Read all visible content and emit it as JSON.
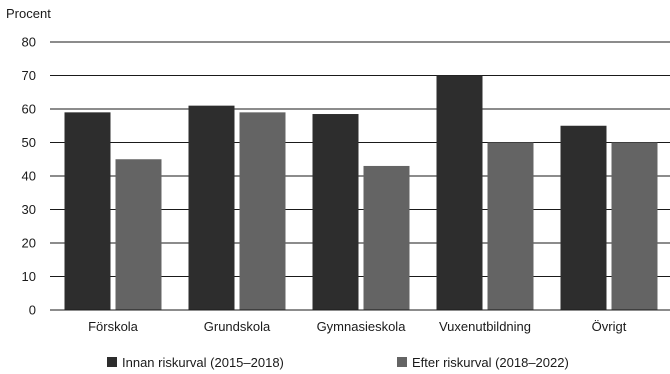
{
  "chart_data": {
    "type": "bar",
    "ylabel": "Procent",
    "ylim": [
      0,
      80
    ],
    "yticks": [
      0,
      10,
      20,
      30,
      40,
      50,
      60,
      70,
      80
    ],
    "grid": true,
    "legend_position": "bottom",
    "categories": [
      "Förskola",
      "Grundskola",
      "Gymnasieskola",
      "Vuxenutbildning",
      "Övrigt"
    ],
    "series": [
      {
        "name": "Innan riskurval (2015–2018)",
        "color": "#2d2d2d",
        "values": [
          59,
          61,
          58.5,
          70,
          55
        ]
      },
      {
        "name": "Efter riskurval (2018–2022)",
        "color": "#646464",
        "values": [
          45,
          59,
          43,
          50,
          50
        ]
      }
    ]
  }
}
